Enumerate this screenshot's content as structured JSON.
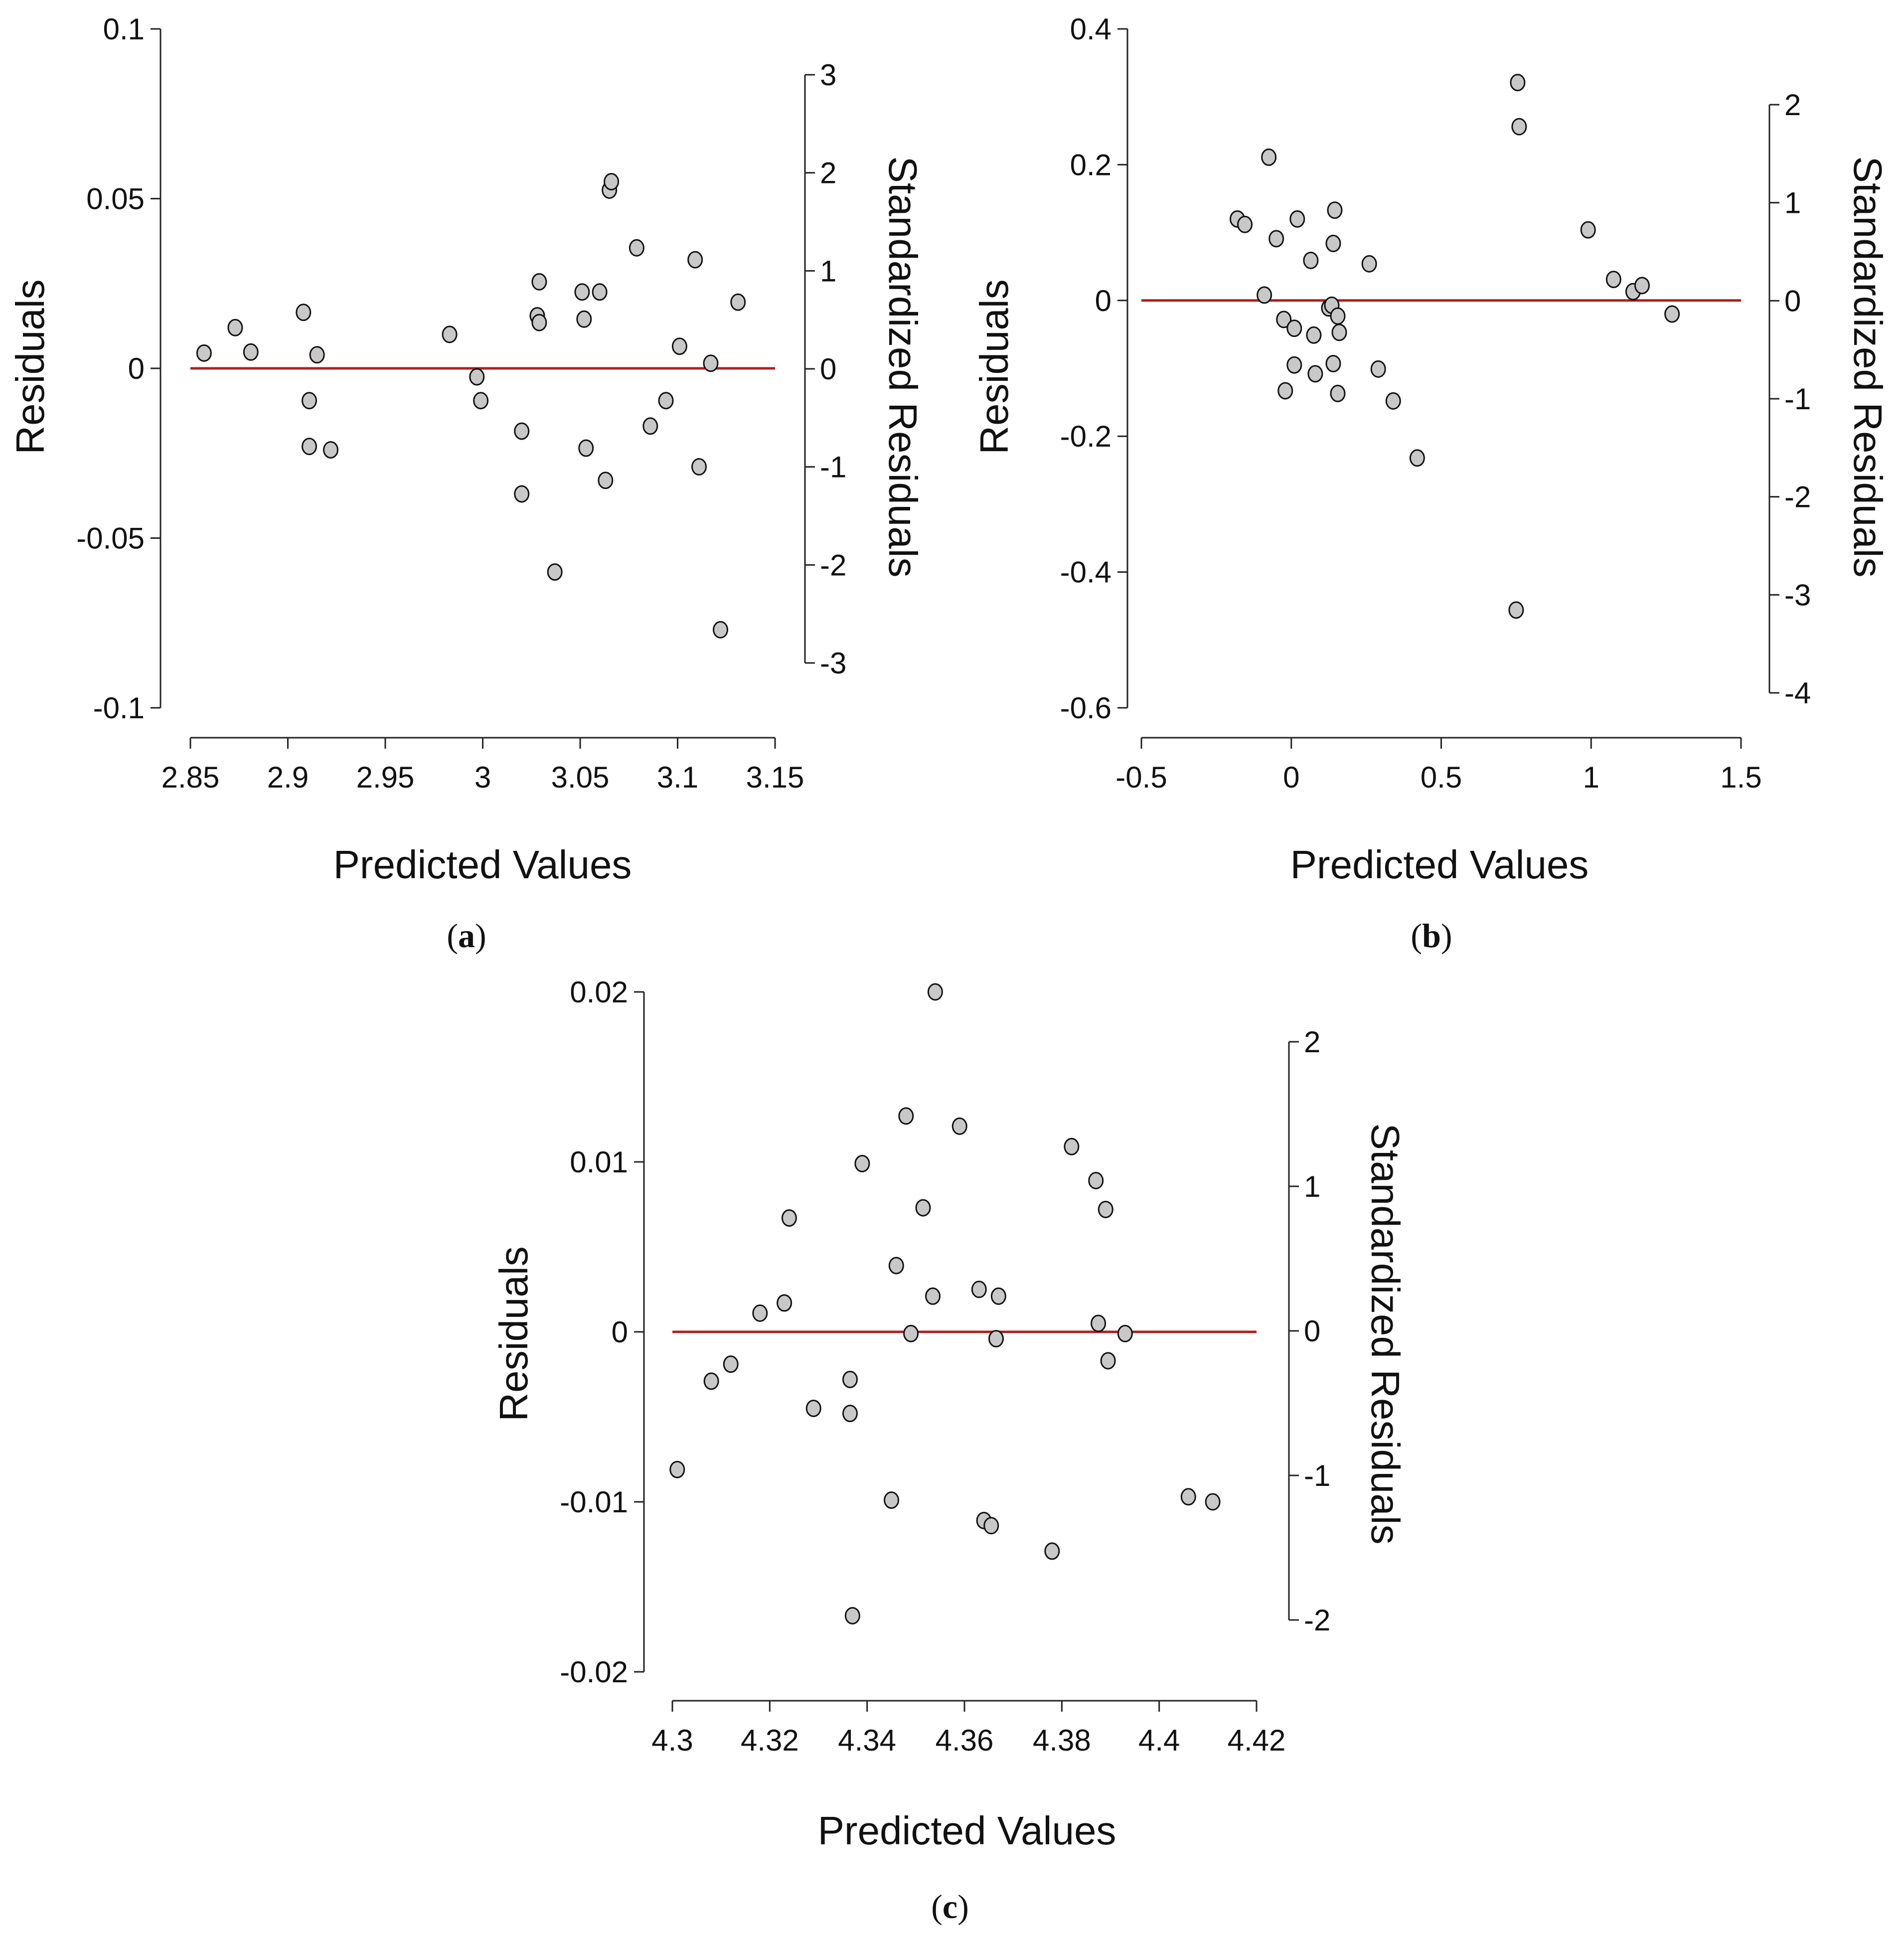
{
  "figure": {
    "panels": [
      "a",
      "b",
      "c"
    ],
    "colors": {
      "zero_line": "#b01e1e",
      "point_fill": "#c8c8c8",
      "point_edge": "#111111",
      "axis": "#222222"
    }
  },
  "chart_data": [
    {
      "id": "a",
      "type": "scatter",
      "label": "a",
      "xlabel": "Predicted Values",
      "ylabel": "Residuals",
      "y2label": "Standardized Residuals",
      "xlim": [
        2.85,
        3.15
      ],
      "ylim": [
        -0.1,
        0.1
      ],
      "y2lim": [
        -3,
        3
      ],
      "x_ticks": [
        2.85,
        2.9,
        2.95,
        3,
        3.05,
        3.1,
        3.15
      ],
      "x_tick_labels": [
        "2.85",
        "2.9",
        "2.95",
        "3",
        "3.05",
        "3.1",
        "3.15"
      ],
      "y_ticks": [
        -0.1,
        -0.05,
        0,
        0.05,
        0.1
      ],
      "y_tick_labels": [
        "-0.1",
        "-0.05",
        "0",
        "0.05",
        "0.1"
      ],
      "y2_ticks": [
        -3,
        -2,
        -1,
        0,
        1,
        2,
        3
      ],
      "y2_tick_labels": [
        "-3",
        "-2",
        "-1",
        "0",
        "1",
        "2",
        "3"
      ],
      "reference_line": 0,
      "x": [
        2.857,
        2.873,
        2.881,
        2.908,
        2.911,
        2.911,
        2.915,
        2.922,
        2.983,
        2.997,
        2.999,
        3.02,
        3.02,
        3.028,
        3.029,
        3.029,
        3.037,
        3.051,
        3.052,
        3.053,
        3.06,
        3.063,
        3.065,
        3.066,
        3.079,
        3.086,
        3.094,
        3.101,
        3.109,
        3.111,
        3.117,
        3.122,
        3.131
      ],
      "y": [
        0.0045,
        0.012,
        0.0048,
        0.0165,
        -0.0095,
        -0.023,
        0.004,
        -0.024,
        0.01,
        -0.0025,
        -0.0095,
        -0.0185,
        -0.037,
        0.0155,
        0.0135,
        0.0255,
        -0.06,
        0.0225,
        0.0145,
        -0.0235,
        0.0225,
        -0.033,
        0.0525,
        0.055,
        0.0355,
        -0.017,
        -0.0095,
        0.0065,
        0.032,
        -0.029,
        0.0015,
        -0.077,
        0.0195
      ]
    },
    {
      "id": "b",
      "type": "scatter",
      "label": "b",
      "xlabel": "Predicted Values",
      "ylabel": "Residuals",
      "y2label": "Standardized Residuals",
      "xlim": [
        -0.5,
        1.5
      ],
      "ylim": [
        -0.6,
        0.4
      ],
      "y2lim": [
        -4,
        2
      ],
      "x_ticks": [
        -0.5,
        0,
        0.5,
        1,
        1.5
      ],
      "x_tick_labels": [
        "-0.5",
        "0",
        "0.5",
        "1",
        "1.5"
      ],
      "y_ticks": [
        -0.6,
        -0.4,
        -0.2,
        0,
        0.2,
        0.4
      ],
      "y_tick_labels": [
        "-0.6",
        "-0.4",
        "-0.2",
        "0",
        "0.2",
        "0.4"
      ],
      "y2_ticks": [
        -4,
        -3,
        -2,
        -1,
        0,
        1,
        2
      ],
      "y2_tick_labels": [
        "-4",
        "-3",
        "-2",
        "-1",
        "0",
        "1",
        "2"
      ],
      "reference_line": 0,
      "x": [
        -0.18,
        -0.155,
        -0.09,
        -0.075,
        -0.05,
        -0.025,
        -0.02,
        0.01,
        0.01,
        0.02,
        0.065,
        0.075,
        0.08,
        0.125,
        0.135,
        0.14,
        0.14,
        0.145,
        0.155,
        0.155,
        0.16,
        0.26,
        0.29,
        0.34,
        0.42,
        0.75,
        0.755,
        0.76,
        0.99,
        1.075,
        1.14,
        1.17,
        1.27
      ],
      "y": [
        0.12,
        0.112,
        0.008,
        0.211,
        0.091,
        -0.028,
        -0.133,
        -0.041,
        -0.095,
        0.12,
        0.059,
        -0.051,
        -0.108,
        -0.011,
        -0.007,
        0.084,
        -0.093,
        0.133,
        -0.023,
        -0.137,
        -0.047,
        0.054,
        -0.101,
        -0.148,
        -0.232,
        -0.456,
        0.321,
        0.256,
        0.104,
        0.031,
        0.013,
        0.022,
        -0.02
      ]
    },
    {
      "id": "c",
      "type": "scatter",
      "label": "c",
      "xlabel": "Predicted Values",
      "ylabel": "Residuals",
      "y2label": "Standardized Residuals",
      "xlim": [
        4.3,
        4.42
      ],
      "ylim": [
        -0.02,
        0.02
      ],
      "y2lim": [
        -2,
        2
      ],
      "x_ticks": [
        4.3,
        4.32,
        4.34,
        4.36,
        4.38,
        4.4,
        4.42
      ],
      "x_tick_labels": [
        "4.3",
        "4.32",
        "4.34",
        "4.36",
        "4.38",
        "4.4",
        "4.42"
      ],
      "y_ticks": [
        -0.02,
        -0.01,
        0,
        0.01,
        0.02
      ],
      "y_tick_labels": [
        "-0.02",
        "-0.01",
        "0",
        "0.01",
        "0.02"
      ],
      "y2_ticks": [
        -2,
        -1,
        0,
        1,
        2
      ],
      "y2_tick_labels": [
        "-2",
        "-1",
        "0",
        "1",
        "2"
      ],
      "reference_line": 0,
      "x": [
        4.301,
        4.308,
        4.312,
        4.318,
        4.323,
        4.324,
        4.329,
        4.3365,
        4.3365,
        4.337,
        4.339,
        4.345,
        4.346,
        4.348,
        4.349,
        4.3515,
        4.3535,
        4.354,
        4.359,
        4.363,
        4.364,
        4.3655,
        4.3665,
        4.367,
        4.378,
        4.382,
        4.387,
        4.3875,
        4.389,
        4.3895,
        4.393,
        4.406,
        4.411
      ],
      "y": [
        -0.0081,
        -0.0029,
        -0.0019,
        0.0011,
        0.0017,
        0.0067,
        -0.0045,
        -0.0028,
        -0.0048,
        -0.0167,
        0.0099,
        -0.0099,
        0.0039,
        0.0127,
        -0.0001,
        0.0073,
        0.0021,
        0.02,
        0.0121,
        0.0025,
        -0.0111,
        -0.0114,
        -0.0004,
        0.0021,
        -0.0129,
        0.0109,
        0.0089,
        0.0005,
        0.0072,
        -0.0017,
        -0.0001,
        -0.0097,
        -0.01
      ]
    }
  ]
}
